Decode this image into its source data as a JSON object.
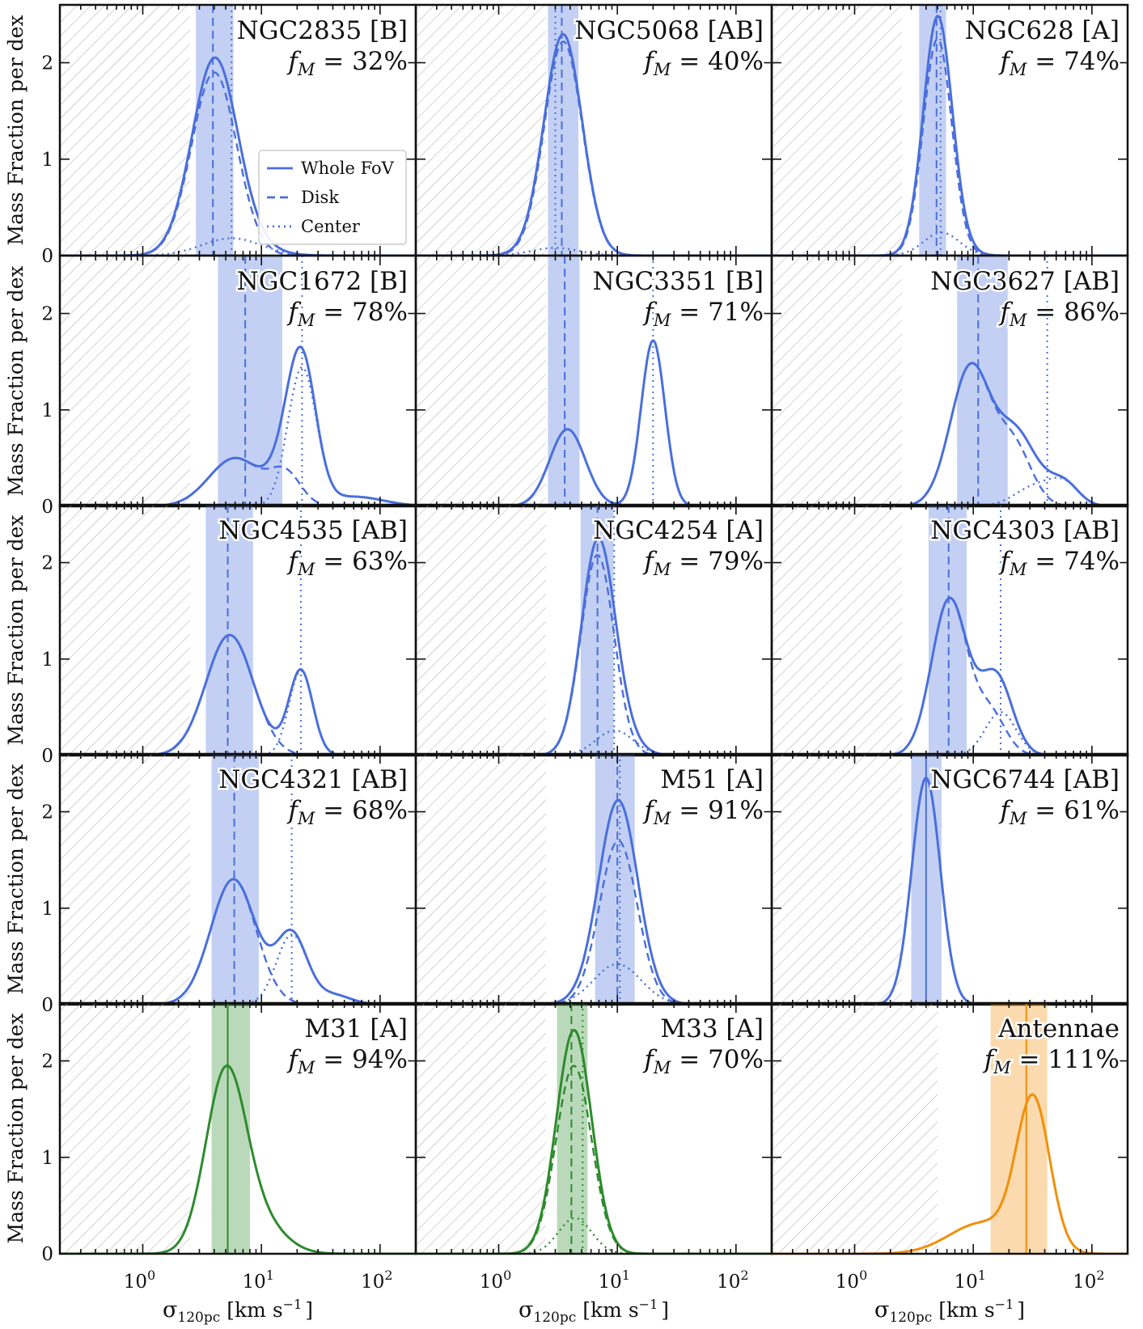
{
  "chart_data": {
    "type": "line",
    "layout": "5x3 grid of panels sharing axes",
    "xscale": "log",
    "xlim": [
      0.2,
      200
    ],
    "ylim": [
      0,
      2.6
    ],
    "xlabel": "σ120pc [km s−1]",
    "xlabel_parts": {
      "symbol": "σ",
      "sub": "120pc",
      "unit": "[km s",
      "exp": "−1",
      "close": "]"
    },
    "ylabel": "Mass Fraction per dex",
    "x_tick_labels": [
      {
        "base": "10",
        "exp": "0"
      },
      {
        "base": "10",
        "exp": "1"
      },
      {
        "base": "10",
        "exp": "2"
      }
    ],
    "y_tick_labels": [
      "0",
      "1",
      "2"
    ],
    "legend": {
      "position": "inside first panel, center-right",
      "entries": [
        {
          "style": "solid",
          "label": "Whole FoV"
        },
        {
          "style": "dashed",
          "label": "Disk"
        },
        {
          "style": "dotted",
          "label": "Center"
        }
      ]
    },
    "colors": {
      "phangs": "#4a6fdc",
      "local": "#2e8b2e",
      "antennae": "#f0900a",
      "hatch": "#b0b0b0"
    },
    "panels": [
      {
        "name": "NGC2835 [B]",
        "fm": "32%",
        "color": "phangs",
        "hatch_max": 2.5,
        "band": [
          2.8,
          5.8
        ],
        "median_disk": 3.9,
        "median_center": 5.6,
        "disk": [
          {
            "mu": 4.0,
            "s": 0.19,
            "a": 1.9
          }
        ],
        "center": [
          {
            "mu": 5.6,
            "s": 0.25,
            "a": 0.18
          }
        ]
      },
      {
        "name": "NGC5068 [AB]",
        "fm": "40%",
        "color": "phangs",
        "hatch_max": 2.5,
        "band": [
          2.6,
          4.7
        ],
        "median_disk": 3.4,
        "median_center": 3.0,
        "disk": [
          {
            "mu": 3.5,
            "s": 0.16,
            "a": 2.22
          }
        ],
        "center": [
          {
            "mu": 3.0,
            "s": 0.2,
            "a": 0.08
          }
        ]
      },
      {
        "name": "NGC628 [A]",
        "fm": "74%",
        "color": "phangs",
        "hatch_max": 2.5,
        "band": [
          3.5,
          5.9
        ],
        "median_disk": 4.9,
        "median_center": 5.3,
        "disk": [
          {
            "mu": 5.0,
            "s": 0.12,
            "a": 2.25
          }
        ],
        "center": [
          {
            "mu": 5.4,
            "s": 0.15,
            "a": 0.24
          }
        ]
      },
      {
        "name": "NGC1672 [B]",
        "fm": "78%",
        "color": "phangs",
        "hatch_max": 2.5,
        "band": [
          4.3,
          15.0
        ],
        "median_disk": 7.3,
        "median_center": 22.0,
        "disk": [
          {
            "mu": 6.0,
            "s": 0.22,
            "a": 0.5
          },
          {
            "mu": 16.0,
            "s": 0.13,
            "a": 0.32
          }
        ],
        "center": [
          {
            "mu": 22.0,
            "s": 0.12,
            "a": 1.42
          },
          {
            "mu": 60.0,
            "s": 0.25,
            "a": 0.1
          }
        ]
      },
      {
        "name": "NGC3351 [B]",
        "fm": "71%",
        "color": "phangs",
        "hatch_max": 2.5,
        "band": [
          2.6,
          4.8
        ],
        "median_disk": 3.6,
        "median_center": 20.0,
        "disk": [
          {
            "mu": 3.8,
            "s": 0.15,
            "a": 0.8
          }
        ],
        "center": [
          {
            "mu": 20.0,
            "s": 0.1,
            "a": 1.72
          }
        ]
      },
      {
        "name": "NGC3627 [AB]",
        "fm": "86%",
        "color": "phangs",
        "hatch_max": 2.5,
        "band": [
          7.3,
          19.5
        ],
        "median_disk": 11.0,
        "median_center": 42.0,
        "disk": [
          {
            "mu": 9.5,
            "s": 0.17,
            "a": 1.45
          },
          {
            "mu": 22.0,
            "s": 0.15,
            "a": 0.6
          }
        ],
        "center": [
          {
            "mu": 35.0,
            "s": 0.18,
            "a": 0.22
          },
          {
            "mu": 60.0,
            "s": 0.12,
            "a": 0.18
          }
        ]
      },
      {
        "name": "NGC4535 [AB]",
        "fm": "63%",
        "color": "phangs",
        "hatch_max": 2.5,
        "band": [
          3.4,
          8.5
        ],
        "median_disk": 5.2,
        "median_center": 21.5,
        "disk": [
          {
            "mu": 5.4,
            "s": 0.2,
            "a": 1.25
          }
        ],
        "center": [
          {
            "mu": 21.5,
            "s": 0.1,
            "a": 0.88
          }
        ]
      },
      {
        "name": "NGC4254 [A]",
        "fm": "79%",
        "color": "phangs",
        "hatch_max": 2.5,
        "band": [
          4.9,
          9.3
        ],
        "median_disk": 6.8,
        "median_center": 9.4,
        "disk": [
          {
            "mu": 6.8,
            "s": 0.14,
            "a": 2.08
          }
        ],
        "center": [
          {
            "mu": 9.5,
            "s": 0.16,
            "a": 0.26
          }
        ]
      },
      {
        "name": "NGC4303 [AB]",
        "fm": "74%",
        "color": "phangs",
        "hatch_max": 2.5,
        "band": [
          4.2,
          8.8
        ],
        "median_disk": 6.2,
        "median_center": 17.0,
        "disk": [
          {
            "mu": 6.3,
            "s": 0.15,
            "a": 1.62
          },
          {
            "mu": 14.0,
            "s": 0.13,
            "a": 0.42
          }
        ],
        "center": [
          {
            "mu": 17.0,
            "s": 0.13,
            "a": 0.45
          }
        ]
      },
      {
        "name": "NGC4321 [AB]",
        "fm": "68%",
        "color": "phangs",
        "hatch_max": 2.5,
        "band": [
          3.8,
          9.5
        ],
        "median_disk": 5.9,
        "median_center": 18.0,
        "disk": [
          {
            "mu": 5.8,
            "s": 0.19,
            "a": 1.3
          }
        ],
        "center": [
          {
            "mu": 18.0,
            "s": 0.13,
            "a": 0.72
          },
          {
            "mu": 40.0,
            "s": 0.15,
            "a": 0.1
          }
        ]
      },
      {
        "name": "M51 [A]",
        "fm": "91%",
        "color": "phangs",
        "hatch_max": 2.5,
        "band": [
          6.5,
          14.0
        ],
        "median_disk": 10.0,
        "median_center": 10.5,
        "disk": [
          {
            "mu": 10.2,
            "s": 0.16,
            "a": 1.7
          }
        ],
        "center": [
          {
            "mu": 10.0,
            "s": 0.2,
            "a": 0.42
          }
        ]
      },
      {
        "name": "NGC6744 [AB]",
        "fm": "61%",
        "color": "phangs",
        "hatch_max": 2.5,
        "band": [
          3.0,
          5.4
        ],
        "median_whole": 4.0,
        "whole_only": [
          {
            "mu": 4.0,
            "s": 0.12,
            "a": 2.35
          }
        ]
      },
      {
        "name": "M31 [A]",
        "fm": "94%",
        "color": "local",
        "hatch_max": 2.5,
        "band": [
          3.8,
          8.0
        ],
        "median_whole": 5.2,
        "whole_only": [
          {
            "mu": 5.0,
            "s": 0.17,
            "a": 1.85
          },
          {
            "mu": 10.0,
            "s": 0.2,
            "a": 0.3
          }
        ]
      },
      {
        "name": "M33 [A]",
        "fm": "70%",
        "color": "local",
        "hatch_max": 2.5,
        "band": [
          3.1,
          5.6
        ],
        "median_disk": 4.1,
        "median_center": 5.1,
        "disk": [
          {
            "mu": 4.3,
            "s": 0.15,
            "a": 1.95
          }
        ],
        "center": [
          {
            "mu": 4.4,
            "s": 0.14,
            "a": 0.37
          }
        ]
      },
      {
        "name": "Antennae",
        "fm": "111%",
        "color": "antennae",
        "hatch_max": 5.0,
        "band": [
          14.0,
          42.0
        ],
        "median_whole": 28.0,
        "whole_only": [
          {
            "mu": 32.0,
            "s": 0.14,
            "a": 1.55
          },
          {
            "mu": 12.0,
            "s": 0.28,
            "a": 0.32
          }
        ]
      }
    ]
  }
}
